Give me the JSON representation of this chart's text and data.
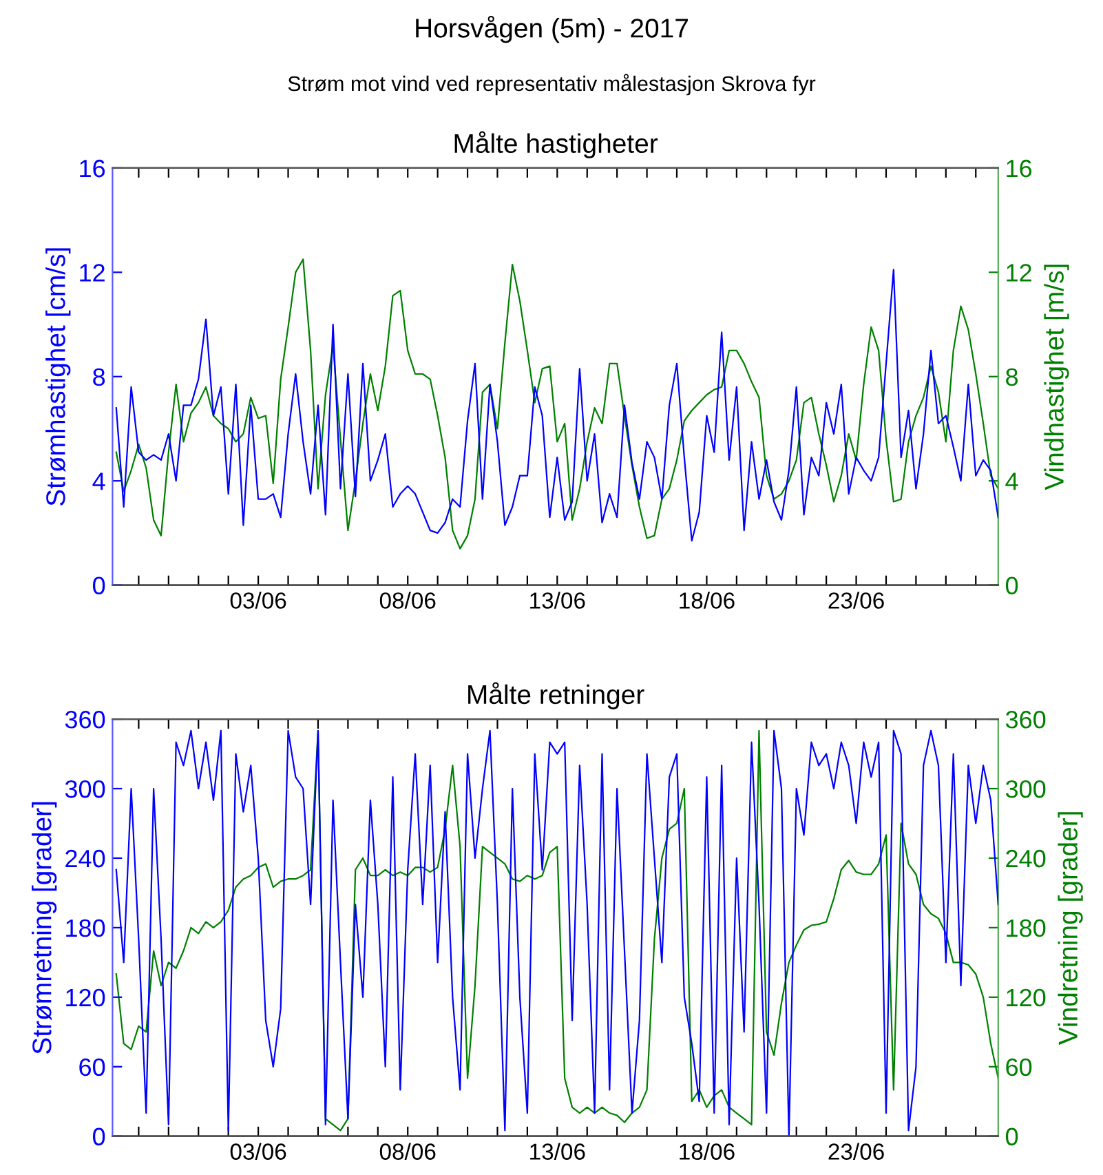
{
  "chart_data": [
    {
      "type": "line",
      "title": "Målte hastigheter",
      "annotations": [
        "Horsvågen (5m) - 2017",
        "Strøm mot vind ved representativ målestasjon Skrova fyr"
      ],
      "ylabel": "Strømhastighet [cm/s]",
      "y2label": "Vindhastighet [m/s]",
      "xlim": [
        "2017-05-29T03:00",
        "2017-06-27T18:00"
      ],
      "xticks": [
        {
          "value": "2017-05-30",
          "label": null
        },
        {
          "value": "2017-05-31",
          "label": null
        },
        {
          "value": "2017-06-01",
          "label": null
        },
        {
          "value": "2017-06-02",
          "label": null
        },
        {
          "value": "2017-06-03",
          "label": "03/06"
        },
        {
          "value": "2017-06-04",
          "label": null
        },
        {
          "value": "2017-06-05",
          "label": null
        },
        {
          "value": "2017-06-06",
          "label": null
        },
        {
          "value": "2017-06-07",
          "label": null
        },
        {
          "value": "2017-06-08",
          "label": "08/06"
        },
        {
          "value": "2017-06-09",
          "label": null
        },
        {
          "value": "2017-06-10",
          "label": null
        },
        {
          "value": "2017-06-11",
          "label": null
        },
        {
          "value": "2017-06-12",
          "label": null
        },
        {
          "value": "2017-06-13",
          "label": "13/06"
        },
        {
          "value": "2017-06-14",
          "label": null
        },
        {
          "value": "2017-06-15",
          "label": null
        },
        {
          "value": "2017-06-16",
          "label": null
        },
        {
          "value": "2017-06-17",
          "label": null
        },
        {
          "value": "2017-06-18",
          "label": "18/06"
        },
        {
          "value": "2017-06-19",
          "label": null
        },
        {
          "value": "2017-06-20",
          "label": null
        },
        {
          "value": "2017-06-21",
          "label": null
        },
        {
          "value": "2017-06-22",
          "label": null
        },
        {
          "value": "2017-06-23",
          "label": "23/06"
        },
        {
          "value": "2017-06-24",
          "label": null
        },
        {
          "value": "2017-06-25",
          "label": null
        },
        {
          "value": "2017-06-26",
          "label": null
        },
        {
          "value": "2017-06-27",
          "label": null
        }
      ],
      "ylim": [
        0,
        16
      ],
      "yticks": [
        0,
        4,
        8,
        12,
        16
      ],
      "y2lim": [
        0,
        16
      ],
      "y2ticks": [
        0,
        4,
        8,
        12,
        16
      ],
      "x": [
        "2017-05-29T06:00",
        "2017-05-29T12:00",
        "2017-05-29T18:00",
        "2017-05-30T00:00",
        "2017-05-30T06:00",
        "2017-05-30T12:00",
        "2017-05-30T18:00",
        "2017-05-31T00:00",
        "2017-05-31T06:00",
        "2017-05-31T12:00",
        "2017-05-31T18:00",
        "2017-06-01T00:00",
        "2017-06-01T06:00",
        "2017-06-01T12:00",
        "2017-06-01T18:00",
        "2017-06-02T00:00",
        "2017-06-02T06:00",
        "2017-06-02T12:00",
        "2017-06-02T18:00",
        "2017-06-03T00:00",
        "2017-06-03T06:00",
        "2017-06-03T12:00",
        "2017-06-03T18:00",
        "2017-06-04T00:00",
        "2017-06-04T06:00",
        "2017-06-04T12:00",
        "2017-06-04T18:00",
        "2017-06-05T00:00",
        "2017-06-05T06:00",
        "2017-06-05T12:00",
        "2017-06-05T18:00",
        "2017-06-06T00:00",
        "2017-06-06T06:00",
        "2017-06-06T12:00",
        "2017-06-06T18:00",
        "2017-06-07T00:00",
        "2017-06-07T06:00",
        "2017-06-07T12:00",
        "2017-06-07T18:00",
        "2017-06-08T00:00",
        "2017-06-08T06:00",
        "2017-06-08T12:00",
        "2017-06-08T18:00",
        "2017-06-09T00:00",
        "2017-06-09T06:00",
        "2017-06-09T12:00",
        "2017-06-09T18:00",
        "2017-06-10T00:00",
        "2017-06-10T06:00",
        "2017-06-10T12:00",
        "2017-06-10T18:00",
        "2017-06-11T00:00",
        "2017-06-11T06:00",
        "2017-06-11T12:00",
        "2017-06-11T18:00",
        "2017-06-12T00:00",
        "2017-06-12T06:00",
        "2017-06-12T12:00",
        "2017-06-12T18:00",
        "2017-06-13T00:00",
        "2017-06-13T06:00",
        "2017-06-13T12:00",
        "2017-06-13T18:00",
        "2017-06-14T00:00",
        "2017-06-14T06:00",
        "2017-06-14T12:00",
        "2017-06-14T18:00",
        "2017-06-15T00:00",
        "2017-06-15T06:00",
        "2017-06-15T12:00",
        "2017-06-15T18:00",
        "2017-06-16T00:00",
        "2017-06-16T06:00",
        "2017-06-16T12:00",
        "2017-06-16T18:00",
        "2017-06-17T00:00",
        "2017-06-17T06:00",
        "2017-06-17T12:00",
        "2017-06-17T18:00",
        "2017-06-18T00:00",
        "2017-06-18T06:00",
        "2017-06-18T12:00",
        "2017-06-18T18:00",
        "2017-06-19T00:00",
        "2017-06-19T06:00",
        "2017-06-19T12:00",
        "2017-06-19T18:00",
        "2017-06-20T00:00",
        "2017-06-20T06:00",
        "2017-06-20T12:00",
        "2017-06-20T18:00",
        "2017-06-21T00:00",
        "2017-06-21T06:00",
        "2017-06-21T12:00",
        "2017-06-21T18:00",
        "2017-06-22T00:00",
        "2017-06-22T06:00",
        "2017-06-22T12:00",
        "2017-06-22T18:00",
        "2017-06-23T00:00",
        "2017-06-23T06:00",
        "2017-06-23T12:00",
        "2017-06-23T18:00",
        "2017-06-24T00:00",
        "2017-06-24T06:00",
        "2017-06-24T12:00",
        "2017-06-24T18:00",
        "2017-06-25T00:00",
        "2017-06-25T06:00",
        "2017-06-25T12:00",
        "2017-06-25T18:00",
        "2017-06-26T00:00",
        "2017-06-26T06:00",
        "2017-06-26T12:00",
        "2017-06-26T18:00",
        "2017-06-27T00:00",
        "2017-06-27T06:00",
        "2017-06-27T12:00",
        "2017-06-27T18:00"
      ],
      "series": [
        {
          "color": "#0000ff",
          "axis": "y",
          "values": [
            6.8,
            3.0,
            7.6,
            5.1,
            4.8,
            5.0,
            4.8,
            5.8,
            4.0,
            6.9,
            6.9,
            7.9,
            10.2,
            6.5,
            7.6,
            3.5,
            7.7,
            2.3,
            6.9,
            3.3,
            3.3,
            3.5,
            2.6,
            5.8,
            8.1,
            5.5,
            3.5,
            6.9,
            2.7,
            10.0,
            3.7,
            8.1,
            3.4,
            8.5,
            4.0,
            4.8,
            5.8,
            3.0,
            3.5,
            3.8,
            3.5,
            2.8,
            2.1,
            2.0,
            2.4,
            3.3,
            3.0,
            6.3,
            8.5,
            3.3,
            7.7,
            5.5,
            2.3,
            3.0,
            4.2,
            4.2,
            7.6,
            6.5,
            2.6,
            4.9,
            2.5,
            3.2,
            8.3,
            4.0,
            5.8,
            2.4,
            3.5,
            2.6,
            6.9,
            4.7,
            3.3,
            5.5,
            4.9,
            3.3,
            6.9,
            8.5,
            4.9,
            1.7,
            2.8,
            6.5,
            5.1,
            9.7,
            4.8,
            7.6,
            2.1,
            5.5,
            3.3,
            4.8,
            3.2,
            2.5,
            4.4,
            7.6,
            2.7,
            4.9,
            4.2,
            7.0,
            5.8,
            7.7,
            3.5,
            4.9,
            4.4,
            4.0,
            4.9,
            8.5,
            12.1,
            4.9,
            6.7,
            3.7,
            5.8,
            9.0,
            6.2,
            6.5,
            5.3,
            4.0,
            7.7,
            4.2,
            4.8,
            4.4,
            2.6
          ]
        },
        {
          "color": "#008000",
          "axis": "y2",
          "values": [
            5.1,
            3.6,
            4.4,
            5.4,
            4.5,
            2.5,
            1.9,
            5.1,
            7.7,
            5.5,
            6.6,
            7.0,
            7.6,
            6.5,
            6.2,
            6.0,
            5.5,
            5.8,
            7.2,
            6.4,
            6.5,
            3.9,
            7.9,
            9.9,
            12.0,
            12.5,
            9.0,
            3.7,
            7.3,
            9.2,
            5.6,
            2.1,
            4.0,
            6.2,
            8.1,
            6.7,
            8.4,
            11.1,
            11.3,
            9.0,
            8.1,
            8.1,
            7.9,
            6.5,
            4.9,
            2.1,
            1.4,
            1.9,
            3.3,
            7.4,
            7.7,
            6.0,
            9.3,
            12.3,
            10.9,
            9.0,
            7.0,
            8.3,
            8.4,
            5.5,
            6.2,
            2.5,
            3.7,
            5.5,
            6.8,
            6.2,
            8.5,
            8.5,
            6.5,
            4.6,
            3.0,
            1.8,
            1.9,
            3.3,
            3.7,
            4.8,
            6.3,
            6.7,
            7.0,
            7.3,
            7.5,
            7.6,
            9.0,
            9.0,
            8.5,
            7.8,
            7.2,
            4.2,
            3.3,
            3.5,
            4.0,
            4.8,
            7.0,
            7.2,
            5.8,
            4.6,
            3.2,
            4.2,
            5.8,
            4.8,
            7.7,
            9.9,
            9.0,
            5.6,
            3.2,
            3.3,
            5.5,
            6.5,
            7.2,
            8.4,
            7.4,
            5.5,
            9.0,
            10.7,
            9.8,
            8.1,
            6.2,
            4.2,
            3.7
          ]
        }
      ]
    },
    {
      "type": "line",
      "title": "Målte retninger",
      "ylabel": "Strømretning [grader]",
      "y2label": "Vindretning [grader]",
      "xlim": [
        "2017-05-29T03:00",
        "2017-06-27T18:00"
      ],
      "xticks": [
        {
          "value": "2017-05-30",
          "label": null
        },
        {
          "value": "2017-05-31",
          "label": null
        },
        {
          "value": "2017-06-01",
          "label": null
        },
        {
          "value": "2017-06-02",
          "label": null
        },
        {
          "value": "2017-06-03",
          "label": "03/06"
        },
        {
          "value": "2017-06-04",
          "label": null
        },
        {
          "value": "2017-06-05",
          "label": null
        },
        {
          "value": "2017-06-06",
          "label": null
        },
        {
          "value": "2017-06-07",
          "label": null
        },
        {
          "value": "2017-06-08",
          "label": "08/06"
        },
        {
          "value": "2017-06-09",
          "label": null
        },
        {
          "value": "2017-06-10",
          "label": null
        },
        {
          "value": "2017-06-11",
          "label": null
        },
        {
          "value": "2017-06-12",
          "label": null
        },
        {
          "value": "2017-06-13",
          "label": "13/06"
        },
        {
          "value": "2017-06-14",
          "label": null
        },
        {
          "value": "2017-06-15",
          "label": null
        },
        {
          "value": "2017-06-16",
          "label": null
        },
        {
          "value": "2017-06-17",
          "label": null
        },
        {
          "value": "2017-06-18",
          "label": "18/06"
        },
        {
          "value": "2017-06-19",
          "label": null
        },
        {
          "value": "2017-06-20",
          "label": null
        },
        {
          "value": "2017-06-21",
          "label": null
        },
        {
          "value": "2017-06-22",
          "label": null
        },
        {
          "value": "2017-06-23",
          "label": "23/06"
        },
        {
          "value": "2017-06-24",
          "label": null
        },
        {
          "value": "2017-06-25",
          "label": null
        },
        {
          "value": "2017-06-26",
          "label": null
        },
        {
          "value": "2017-06-27",
          "label": null
        }
      ],
      "ylim": [
        0,
        360
      ],
      "yticks": [
        0,
        60,
        120,
        180,
        240,
        300,
        360
      ],
      "y2lim": [
        0,
        360
      ],
      "y2ticks": [
        0,
        60,
        120,
        180,
        240,
        300,
        360
      ],
      "x": [
        "2017-05-29T06:00",
        "2017-05-29T12:00",
        "2017-05-29T18:00",
        "2017-05-30T00:00",
        "2017-05-30T06:00",
        "2017-05-30T12:00",
        "2017-05-30T18:00",
        "2017-05-31T00:00",
        "2017-05-31T06:00",
        "2017-05-31T12:00",
        "2017-05-31T18:00",
        "2017-06-01T00:00",
        "2017-06-01T06:00",
        "2017-06-01T12:00",
        "2017-06-01T18:00",
        "2017-06-02T00:00",
        "2017-06-02T06:00",
        "2017-06-02T12:00",
        "2017-06-02T18:00",
        "2017-06-03T00:00",
        "2017-06-03T06:00",
        "2017-06-03T12:00",
        "2017-06-03T18:00",
        "2017-06-04T00:00",
        "2017-06-04T06:00",
        "2017-06-04T12:00",
        "2017-06-04T18:00",
        "2017-06-05T00:00",
        "2017-06-05T06:00",
        "2017-06-05T12:00",
        "2017-06-05T18:00",
        "2017-06-06T00:00",
        "2017-06-06T06:00",
        "2017-06-06T12:00",
        "2017-06-06T18:00",
        "2017-06-07T00:00",
        "2017-06-07T06:00",
        "2017-06-07T12:00",
        "2017-06-07T18:00",
        "2017-06-08T00:00",
        "2017-06-08T06:00",
        "2017-06-08T12:00",
        "2017-06-08T18:00",
        "2017-06-09T00:00",
        "2017-06-09T06:00",
        "2017-06-09T12:00",
        "2017-06-09T18:00",
        "2017-06-10T00:00",
        "2017-06-10T06:00",
        "2017-06-10T12:00",
        "2017-06-10T18:00",
        "2017-06-11T00:00",
        "2017-06-11T06:00",
        "2017-06-11T12:00",
        "2017-06-11T18:00",
        "2017-06-12T00:00",
        "2017-06-12T06:00",
        "2017-06-12T12:00",
        "2017-06-12T18:00",
        "2017-06-13T00:00",
        "2017-06-13T06:00",
        "2017-06-13T12:00",
        "2017-06-13T18:00",
        "2017-06-14T00:00",
        "2017-06-14T06:00",
        "2017-06-14T12:00",
        "2017-06-14T18:00",
        "2017-06-15T00:00",
        "2017-06-15T06:00",
        "2017-06-15T12:00",
        "2017-06-15T18:00",
        "2017-06-16T00:00",
        "2017-06-16T06:00",
        "2017-06-16T12:00",
        "2017-06-16T18:00",
        "2017-06-17T00:00",
        "2017-06-17T06:00",
        "2017-06-17T12:00",
        "2017-06-17T18:00",
        "2017-06-18T00:00",
        "2017-06-18T06:00",
        "2017-06-18T12:00",
        "2017-06-18T18:00",
        "2017-06-19T00:00",
        "2017-06-19T06:00",
        "2017-06-19T12:00",
        "2017-06-19T18:00",
        "2017-06-20T00:00",
        "2017-06-20T06:00",
        "2017-06-20T12:00",
        "2017-06-20T18:00",
        "2017-06-21T00:00",
        "2017-06-21T06:00",
        "2017-06-21T12:00",
        "2017-06-21T18:00",
        "2017-06-22T00:00",
        "2017-06-22T06:00",
        "2017-06-22T12:00",
        "2017-06-22T18:00",
        "2017-06-23T00:00",
        "2017-06-23T06:00",
        "2017-06-23T12:00",
        "2017-06-23T18:00",
        "2017-06-24T00:00",
        "2017-06-24T06:00",
        "2017-06-24T12:00",
        "2017-06-24T18:00",
        "2017-06-25T00:00",
        "2017-06-25T06:00",
        "2017-06-25T12:00",
        "2017-06-25T18:00",
        "2017-06-26T00:00",
        "2017-06-26T06:00",
        "2017-06-26T12:00",
        "2017-06-26T18:00",
        "2017-06-27T00:00",
        "2017-06-27T06:00",
        "2017-06-27T12:00",
        "2017-06-27T18:00"
      ],
      "series": [
        {
          "color": "#0000ff",
          "axis": "y",
          "values": [
            230,
            150,
            300,
            170,
            20,
            300,
            170,
            10,
            340,
            320,
            350,
            300,
            340,
            290,
            350,
            5,
            330,
            280,
            320,
            240,
            100,
            60,
            110,
            350,
            310,
            300,
            200,
            350,
            10,
            290,
            150,
            15,
            200,
            120,
            290,
            200,
            60,
            310,
            40,
            230,
            330,
            200,
            320,
            150,
            280,
            120,
            40,
            330,
            240,
            300,
            350,
            200,
            5,
            300,
            120,
            20,
            330,
            230,
            340,
            330,
            340,
            100,
            320,
            200,
            20,
            330,
            40,
            300,
            160,
            20,
            100,
            330,
            240,
            150,
            310,
            330,
            120,
            80,
            30,
            310,
            20,
            320,
            10,
            240,
            90,
            340,
            200,
            20,
            350,
            300,
            0,
            300,
            260,
            340,
            320,
            330,
            300,
            340,
            320,
            270,
            340,
            310,
            340,
            20,
            350,
            330,
            5,
            60,
            320,
            350,
            320,
            150,
            330,
            130,
            320,
            270,
            320,
            290,
            200
          ]
        },
        {
          "color": "#008000",
          "axis": "y2",
          "values": [
            140,
            80,
            75,
            95,
            90,
            160,
            130,
            150,
            145,
            160,
            180,
            175,
            185,
            180,
            185,
            195,
            215,
            222,
            225,
            232,
            235,
            215,
            220,
            222,
            222,
            225,
            230,
            350,
            15,
            10,
            5,
            15,
            230,
            240,
            225,
            225,
            230,
            225,
            228,
            225,
            232,
            232,
            228,
            232,
            265,
            320,
            250,
            50,
            130,
            250,
            245,
            240,
            235,
            222,
            220,
            225,
            222,
            225,
            245,
            250,
            50,
            25,
            20,
            25,
            20,
            25,
            20,
            18,
            12,
            20,
            25,
            40,
            170,
            240,
            265,
            270,
            300,
            30,
            40,
            25,
            35,
            40,
            25,
            20,
            15,
            10,
            350,
            90,
            70,
            115,
            150,
            165,
            178,
            182,
            183,
            185,
            205,
            230,
            238,
            228,
            226,
            226,
            235,
            260,
            40,
            270,
            235,
            226,
            200,
            192,
            188,
            175,
            150,
            150,
            148,
            140,
            120,
            80,
            50
          ]
        }
      ]
    }
  ]
}
